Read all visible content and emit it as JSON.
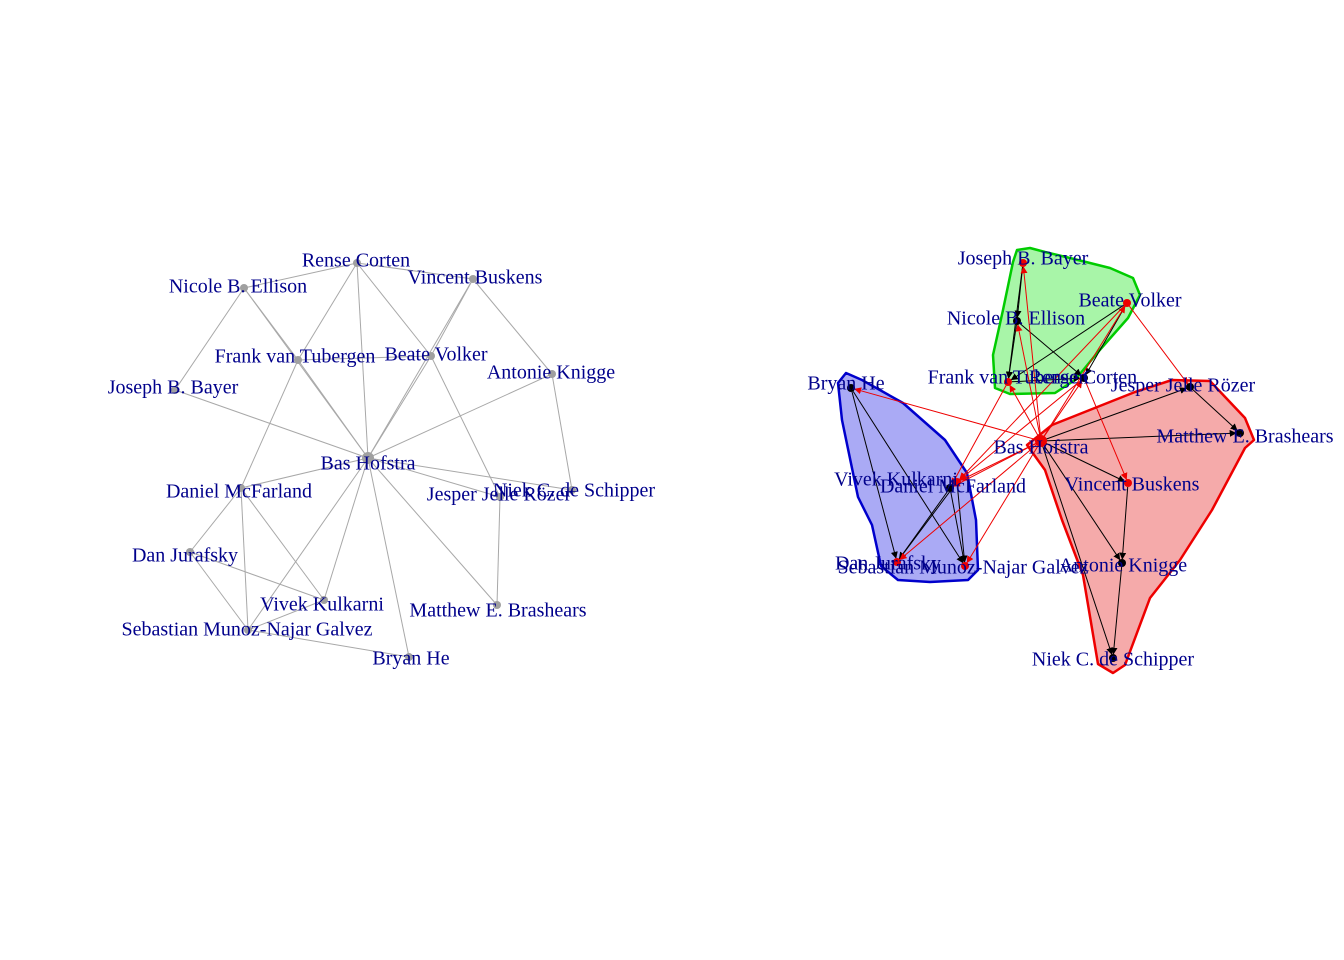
{
  "left_graph": {
    "nodes": [
      {
        "id": "bas",
        "label": "Bas Hofstra"
      },
      {
        "id": "rense",
        "label": "Rense Corten"
      },
      {
        "id": "vincent",
        "label": "Vincent Buskens"
      },
      {
        "id": "nicole",
        "label": "Nicole B. Ellison"
      },
      {
        "id": "frank",
        "label": "Frank van Tubergen"
      },
      {
        "id": "beate",
        "label": "Beate Volker"
      },
      {
        "id": "antonie",
        "label": "Antonie Knigge"
      },
      {
        "id": "joseph",
        "label": "Joseph B. Bayer"
      },
      {
        "id": "daniel",
        "label": "Daniel McFarland"
      },
      {
        "id": "niek",
        "label": "Niek C. de Schipper"
      },
      {
        "id": "jesper",
        "label": "Jesper Jelle Rözer"
      },
      {
        "id": "dan",
        "label": "Dan Jurafsky"
      },
      {
        "id": "vivek",
        "label": "Vivek Kulkarni"
      },
      {
        "id": "matthew",
        "label": "Matthew E. Brashears"
      },
      {
        "id": "sebastian",
        "label": "Sebastian Munoz-Najar Galvez"
      },
      {
        "id": "bryan",
        "label": "Bryan He"
      }
    ],
    "edges": [
      [
        "bas",
        "rense"
      ],
      [
        "bas",
        "nicole"
      ],
      [
        "bas",
        "frank"
      ],
      [
        "bas",
        "beate"
      ],
      [
        "bas",
        "antonie"
      ],
      [
        "bas",
        "joseph"
      ],
      [
        "bas",
        "daniel"
      ],
      [
        "bas",
        "niek"
      ],
      [
        "bas",
        "jesper"
      ],
      [
        "bas",
        "vivek"
      ],
      [
        "bas",
        "matthew"
      ],
      [
        "bas",
        "sebastian"
      ],
      [
        "bas",
        "bryan"
      ],
      [
        "bas",
        "vincent"
      ],
      [
        "rense",
        "vincent"
      ],
      [
        "rense",
        "nicole"
      ],
      [
        "rense",
        "frank"
      ],
      [
        "rense",
        "beate"
      ],
      [
        "nicole",
        "frank"
      ],
      [
        "nicole",
        "joseph"
      ],
      [
        "frank",
        "beate"
      ],
      [
        "beate",
        "vincent"
      ],
      [
        "vincent",
        "antonie"
      ],
      [
        "antonie",
        "niek"
      ],
      [
        "beate",
        "jesper"
      ],
      [
        "jesper",
        "matthew"
      ],
      [
        "frank",
        "daniel"
      ],
      [
        "daniel",
        "dan"
      ],
      [
        "daniel",
        "vivek"
      ],
      [
        "daniel",
        "sebastian"
      ],
      [
        "dan",
        "sebastian"
      ],
      [
        "dan",
        "vivek"
      ],
      [
        "vivek",
        "sebastian"
      ],
      [
        "sebastian",
        "bryan"
      ]
    ]
  },
  "right_graph": {
    "groups": [
      {
        "name": "green",
        "fill": "#a8f5a8",
        "stroke": "#00cc00",
        "members": [
          "joseph",
          "nicole",
          "beate",
          "frank",
          "rense"
        ]
      },
      {
        "name": "blue",
        "fill": "#aaaaf5",
        "stroke": "#0000cc",
        "members": [
          "bryan",
          "vivek",
          "daniel",
          "dan",
          "sebastian"
        ]
      },
      {
        "name": "red",
        "fill": "#f5aaaa",
        "stroke": "#ee0000",
        "members": [
          "jesper",
          "matthew",
          "bas",
          "vincent",
          "antonie",
          "niek"
        ]
      }
    ],
    "nodes": [
      {
        "id": "joseph",
        "label": "Joseph B. Bayer",
        "color": "red"
      },
      {
        "id": "beate",
        "label": "Beate Volker",
        "color": "red"
      },
      {
        "id": "nicole",
        "label": "Nicole B. Ellison",
        "color": "black"
      },
      {
        "id": "frank",
        "label": "Frank van Tubergen",
        "color": "red"
      },
      {
        "id": "rense",
        "label": "Rense Corten",
        "color": "black"
      },
      {
        "id": "bryan",
        "label": "Bryan He",
        "color": "black"
      },
      {
        "id": "jesper",
        "label": "Jesper Jelle Rözer",
        "color": "black"
      },
      {
        "id": "matthew",
        "label": "Matthew E. Brashears",
        "color": "black"
      },
      {
        "id": "bas",
        "label": "Bas Hofstra",
        "color": "red"
      },
      {
        "id": "vivek",
        "label": "Vivek Kulkarni",
        "color": "red"
      },
      {
        "id": "daniel",
        "label": "Daniel McFarland",
        "color": "black"
      },
      {
        "id": "vincent",
        "label": "Vincent Buskens",
        "color": "red"
      },
      {
        "id": "dan",
        "label": "Dan Jurafsky",
        "color": "red"
      },
      {
        "id": "sebastian",
        "label": "Sebastian Munoz-Najar Galvez",
        "color": "red"
      },
      {
        "id": "antonie",
        "label": "Antonie Knigge",
        "color": "black"
      },
      {
        "id": "niek",
        "label": "Niek C. de Schipper",
        "color": "black"
      }
    ],
    "edges": [
      {
        "from": "joseph",
        "to": "nicole",
        "type": "within"
      },
      {
        "from": "nicole",
        "to": "frank",
        "type": "within"
      },
      {
        "from": "nicole",
        "to": "rense",
        "type": "within"
      },
      {
        "from": "beate",
        "to": "frank",
        "type": "within"
      },
      {
        "from": "beate",
        "to": "rense",
        "type": "within"
      },
      {
        "from": "frank",
        "to": "rense",
        "type": "within"
      },
      {
        "from": "joseph",
        "to": "frank",
        "type": "within"
      },
      {
        "from": "bryan",
        "to": "dan",
        "type": "within"
      },
      {
        "from": "bryan",
        "to": "sebastian",
        "type": "within"
      },
      {
        "from": "daniel",
        "to": "dan",
        "type": "within"
      },
      {
        "from": "daniel",
        "to": "sebastian",
        "type": "within"
      },
      {
        "from": "vivek",
        "to": "sebastian",
        "type": "within"
      },
      {
        "from": "vivek",
        "to": "dan",
        "type": "within"
      },
      {
        "from": "bas",
        "to": "jesper",
        "type": "within"
      },
      {
        "from": "bas",
        "to": "matthew",
        "type": "within"
      },
      {
        "from": "bas",
        "to": "vincent",
        "type": "within"
      },
      {
        "from": "bas",
        "to": "antonie",
        "type": "within"
      },
      {
        "from": "bas",
        "to": "niek",
        "type": "within"
      },
      {
        "from": "jesper",
        "to": "matthew",
        "type": "within"
      },
      {
        "from": "vincent",
        "to": "antonie",
        "type": "within"
      },
      {
        "from": "antonie",
        "to": "niek",
        "type": "within"
      },
      {
        "from": "bas",
        "to": "joseph",
        "type": "between"
      },
      {
        "from": "bas",
        "to": "nicole",
        "type": "between"
      },
      {
        "from": "bas",
        "to": "frank",
        "type": "between"
      },
      {
        "from": "bas",
        "to": "rense",
        "type": "between"
      },
      {
        "from": "bas",
        "to": "beate",
        "type": "between"
      },
      {
        "from": "bas",
        "to": "bryan",
        "type": "between"
      },
      {
        "from": "bas",
        "to": "vivek",
        "type": "between"
      },
      {
        "from": "bas",
        "to": "daniel",
        "type": "between"
      },
      {
        "from": "bas",
        "to": "dan",
        "type": "between"
      },
      {
        "from": "bas",
        "to": "sebastian",
        "type": "between"
      },
      {
        "from": "frank",
        "to": "daniel",
        "type": "between"
      },
      {
        "from": "beate",
        "to": "jesper",
        "type": "between"
      },
      {
        "from": "beate",
        "to": "vivek",
        "type": "between"
      },
      {
        "from": "rense",
        "to": "vincent",
        "type": "between"
      },
      {
        "from": "rense",
        "to": "vivek",
        "type": "between"
      }
    ],
    "colors": {
      "within": "#000000",
      "between": "#ee0000"
    }
  }
}
